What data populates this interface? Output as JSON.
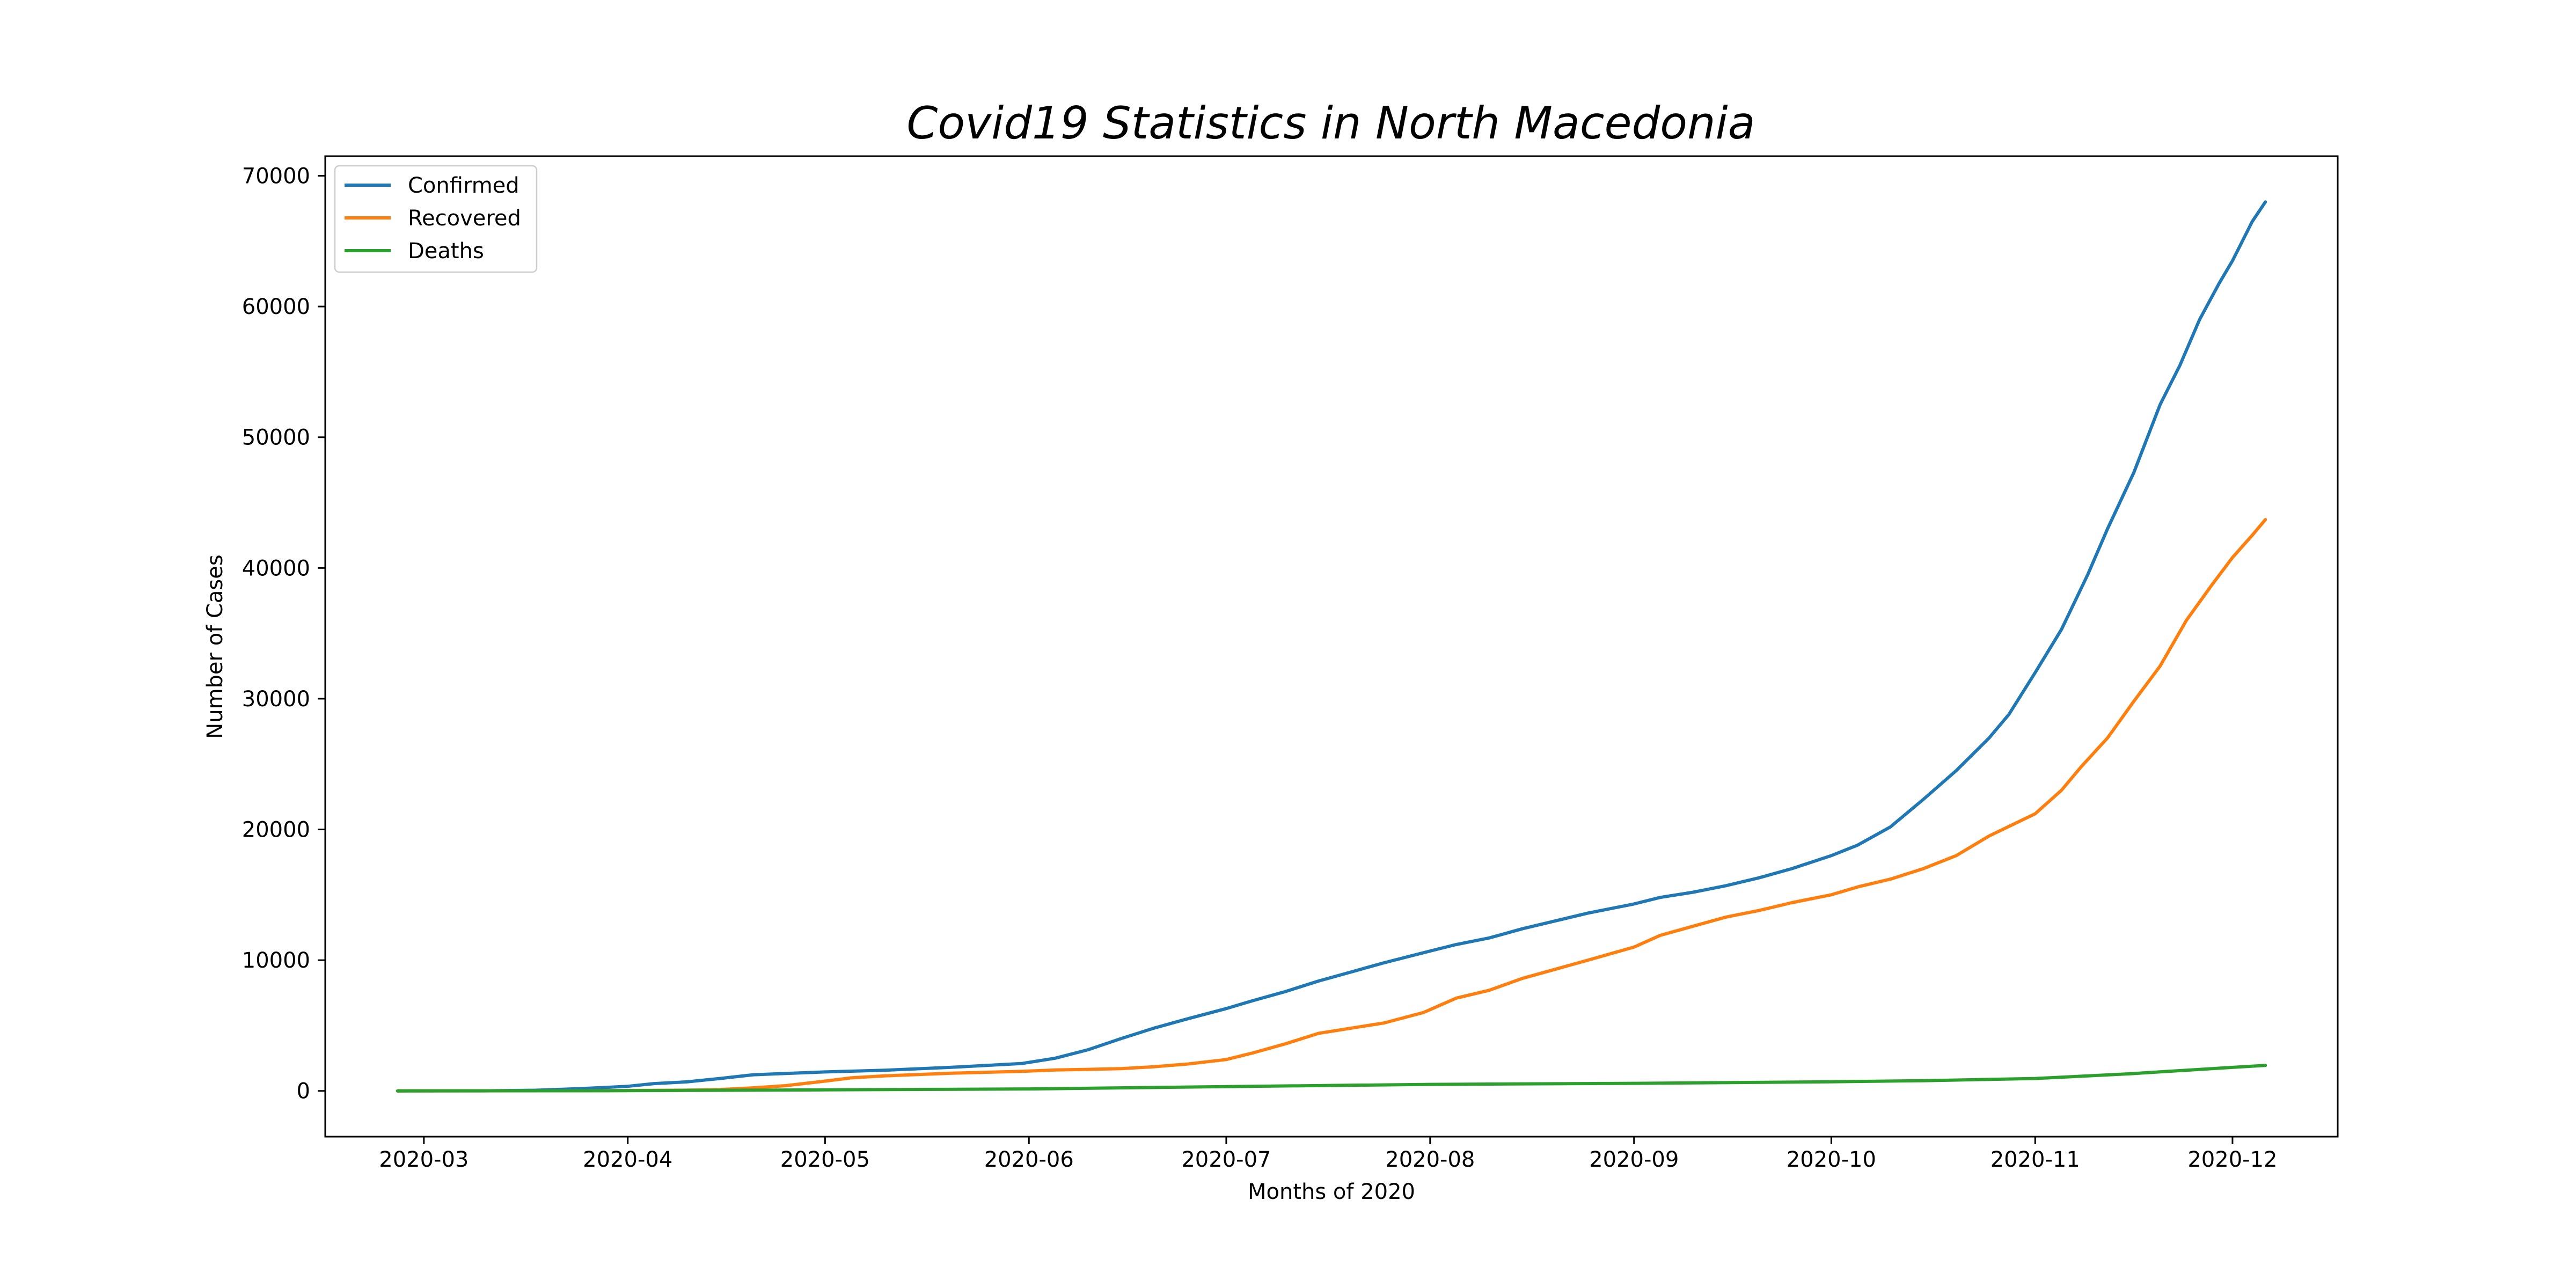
{
  "colors": {
    "confirmed": "#1f77b4",
    "recovered": "#ff7f0e",
    "deaths": "#2ca02c",
    "axes": "#000000",
    "legend_frame": "#cccccc",
    "background": "#ffffff"
  },
  "chart_data": {
    "type": "line",
    "title": "Covid19 Statistics in North Macedonia",
    "xlabel": "Months of 2020",
    "ylabel": "Number of Cases",
    "x_type": "date",
    "xlim": [
      "2020-02-15",
      "2020-12-17"
    ],
    "ylim": [
      -3500,
      71500
    ],
    "grid": false,
    "legend_position": "top-left",
    "x_ticks": [
      "2020-03",
      "2020-04",
      "2020-05",
      "2020-06",
      "2020-07",
      "2020-08",
      "2020-09",
      "2020-10",
      "2020-11",
      "2020-12"
    ],
    "x_tick_dates": [
      "2020-03-01",
      "2020-04-01",
      "2020-05-01",
      "2020-06-01",
      "2020-07-01",
      "2020-08-01",
      "2020-09-01",
      "2020-10-01",
      "2020-11-01",
      "2020-12-01"
    ],
    "y_ticks": [
      0,
      10000,
      20000,
      30000,
      40000,
      50000,
      60000,
      70000
    ],
    "series": [
      {
        "name": "Confirmed",
        "color_key": "confirmed",
        "points": [
          [
            "2020-02-26",
            1
          ],
          [
            "2020-03-10",
            5
          ],
          [
            "2020-03-18",
            50
          ],
          [
            "2020-03-25",
            180
          ],
          [
            "2020-04-01",
            350
          ],
          [
            "2020-04-05",
            560
          ],
          [
            "2020-04-10",
            690
          ],
          [
            "2020-04-15",
            950
          ],
          [
            "2020-04-20",
            1230
          ],
          [
            "2020-04-25",
            1330
          ],
          [
            "2020-05-01",
            1450
          ],
          [
            "2020-05-10",
            1580
          ],
          [
            "2020-05-20",
            1800
          ],
          [
            "2020-05-31",
            2100
          ],
          [
            "2020-06-05",
            2500
          ],
          [
            "2020-06-10",
            3150
          ],
          [
            "2020-06-15",
            4000
          ],
          [
            "2020-06-20",
            4800
          ],
          [
            "2020-06-25",
            5500
          ],
          [
            "2020-07-01",
            6300
          ],
          [
            "2020-07-05",
            6900
          ],
          [
            "2020-07-10",
            7600
          ],
          [
            "2020-07-15",
            8400
          ],
          [
            "2020-07-20",
            9100
          ],
          [
            "2020-07-25",
            9800
          ],
          [
            "2020-08-01",
            10700
          ],
          [
            "2020-08-05",
            11200
          ],
          [
            "2020-08-10",
            11700
          ],
          [
            "2020-08-15",
            12400
          ],
          [
            "2020-08-20",
            13000
          ],
          [
            "2020-08-25",
            13600
          ],
          [
            "2020-09-01",
            14300
          ],
          [
            "2020-09-05",
            14800
          ],
          [
            "2020-09-10",
            15200
          ],
          [
            "2020-09-15",
            15700
          ],
          [
            "2020-09-20",
            16300
          ],
          [
            "2020-09-25",
            17000
          ],
          [
            "2020-10-01",
            18000
          ],
          [
            "2020-10-05",
            18800
          ],
          [
            "2020-10-10",
            20200
          ],
          [
            "2020-10-15",
            22300
          ],
          [
            "2020-10-20",
            24500
          ],
          [
            "2020-10-25",
            27000
          ],
          [
            "2020-10-28",
            28800
          ],
          [
            "2020-11-01",
            32000
          ],
          [
            "2020-11-05",
            35300
          ],
          [
            "2020-11-09",
            39500
          ],
          [
            "2020-11-12",
            43000
          ],
          [
            "2020-11-16",
            47300
          ],
          [
            "2020-11-20",
            52500
          ],
          [
            "2020-11-23",
            55500
          ],
          [
            "2020-11-26",
            59000
          ],
          [
            "2020-11-29",
            61800
          ],
          [
            "2020-12-01",
            63500
          ],
          [
            "2020-12-04",
            66500
          ],
          [
            "2020-12-06",
            68000
          ]
        ]
      },
      {
        "name": "Recovered",
        "color_key": "recovered",
        "points": [
          [
            "2020-02-26",
            0
          ],
          [
            "2020-03-25",
            10
          ],
          [
            "2020-04-10",
            60
          ],
          [
            "2020-04-15",
            100
          ],
          [
            "2020-04-20",
            230
          ],
          [
            "2020-04-25",
            400
          ],
          [
            "2020-05-01",
            750
          ],
          [
            "2020-05-05",
            1000
          ],
          [
            "2020-05-10",
            1150
          ],
          [
            "2020-05-20",
            1350
          ],
          [
            "2020-05-31",
            1500
          ],
          [
            "2020-06-05",
            1600
          ],
          [
            "2020-06-15",
            1700
          ],
          [
            "2020-06-20",
            1850
          ],
          [
            "2020-06-25",
            2050
          ],
          [
            "2020-07-01",
            2400
          ],
          [
            "2020-07-05",
            2900
          ],
          [
            "2020-07-10",
            3600
          ],
          [
            "2020-07-15",
            4400
          ],
          [
            "2020-07-20",
            4800
          ],
          [
            "2020-07-25",
            5200
          ],
          [
            "2020-07-31",
            6000
          ],
          [
            "2020-08-05",
            7100
          ],
          [
            "2020-08-10",
            7700
          ],
          [
            "2020-08-15",
            8600
          ],
          [
            "2020-08-20",
            9300
          ],
          [
            "2020-08-25",
            10000
          ],
          [
            "2020-09-01",
            11000
          ],
          [
            "2020-09-05",
            11900
          ],
          [
            "2020-09-10",
            12600
          ],
          [
            "2020-09-15",
            13300
          ],
          [
            "2020-09-20",
            13800
          ],
          [
            "2020-09-25",
            14400
          ],
          [
            "2020-10-01",
            15000
          ],
          [
            "2020-10-05",
            15600
          ],
          [
            "2020-10-10",
            16200
          ],
          [
            "2020-10-15",
            17000
          ],
          [
            "2020-10-20",
            18000
          ],
          [
            "2020-10-25",
            19500
          ],
          [
            "2020-11-01",
            21200
          ],
          [
            "2020-11-05",
            23000
          ],
          [
            "2020-11-08",
            24800
          ],
          [
            "2020-11-12",
            27000
          ],
          [
            "2020-11-16",
            29800
          ],
          [
            "2020-11-20",
            32500
          ],
          [
            "2020-11-24",
            36000
          ],
          [
            "2020-11-28",
            38800
          ],
          [
            "2020-12-01",
            40800
          ],
          [
            "2020-12-04",
            42500
          ],
          [
            "2020-12-06",
            43700
          ]
        ]
      },
      {
        "name": "Deaths",
        "color_key": "deaths",
        "points": [
          [
            "2020-02-26",
            0
          ],
          [
            "2020-04-01",
            20
          ],
          [
            "2020-05-01",
            80
          ],
          [
            "2020-06-01",
            150
          ],
          [
            "2020-07-01",
            330
          ],
          [
            "2020-08-01",
            500
          ],
          [
            "2020-09-01",
            580
          ],
          [
            "2020-10-01",
            700
          ],
          [
            "2020-10-15",
            780
          ],
          [
            "2020-11-01",
            950
          ],
          [
            "2020-11-15",
            1300
          ],
          [
            "2020-12-01",
            1800
          ],
          [
            "2020-12-06",
            1950
          ]
        ]
      }
    ]
  }
}
